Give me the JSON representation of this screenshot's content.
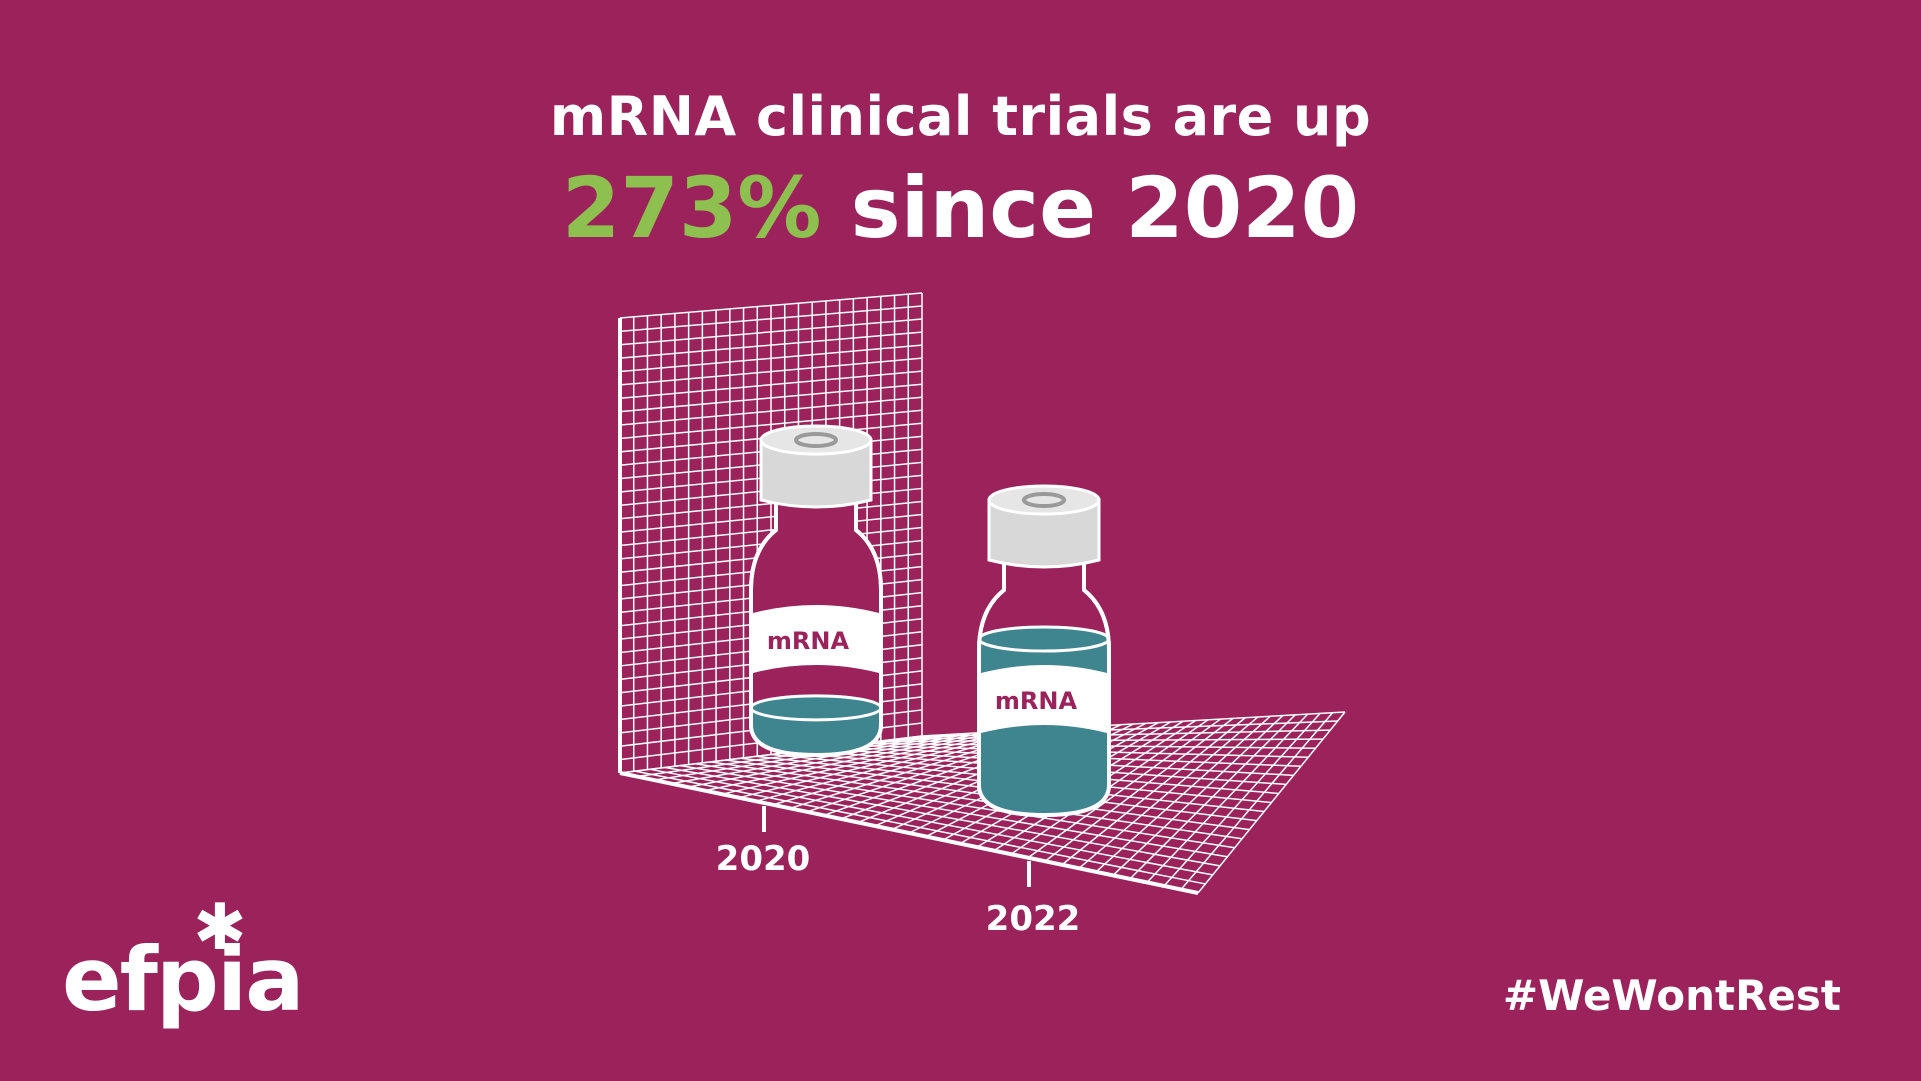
{
  "title": {
    "line1": "mRNA clinical trials are up",
    "highlight": "273%",
    "rest": " since 2020"
  },
  "chart_data": {
    "type": "bar",
    "categories": [
      "2020",
      "2022"
    ],
    "values": [
      1,
      3.73
    ],
    "bar_label": "mRNA",
    "change_pct": 273,
    "grid": true,
    "colors": {
      "background": "#9c225c",
      "accent": "#8dc04f",
      "liquid": "#3f8590",
      "cap": "#d8d8d8",
      "line": "#ffffff"
    }
  },
  "footer": {
    "logo": "efpia",
    "hashtag": "#WeWontRest"
  }
}
